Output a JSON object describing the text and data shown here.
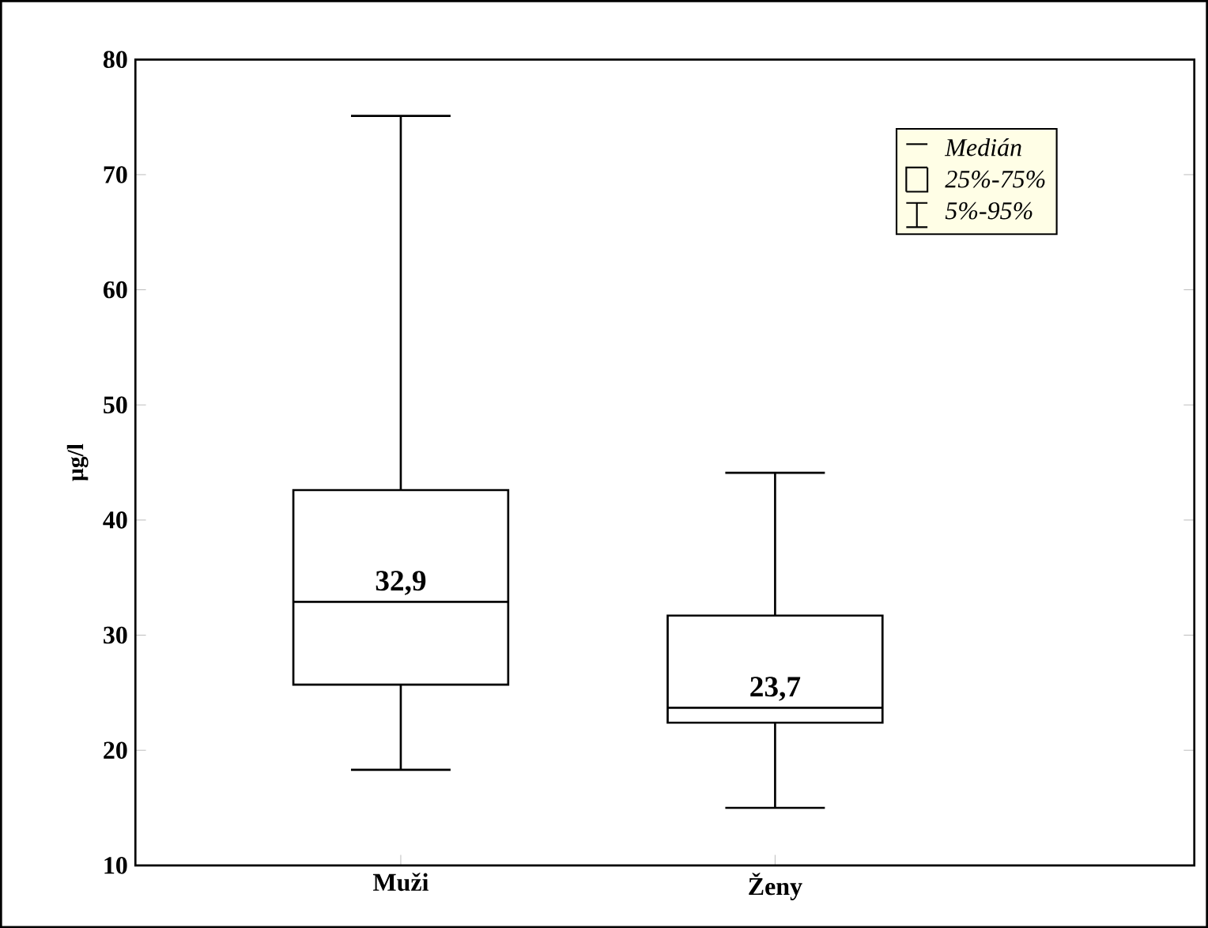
{
  "chart_data": {
    "type": "box",
    "ylabel": "µg/l",
    "categories": [
      "Muži",
      "Ženy"
    ],
    "boxes": [
      {
        "low": 18.3,
        "q1": 25.7,
        "median": 32.9,
        "q3": 42.6,
        "high": 75.1
      },
      {
        "low": 15.0,
        "q1": 22.4,
        "median": 23.7,
        "q3": 31.7,
        "high": 44.1
      }
    ],
    "value_labels": [
      "32,9",
      "23,7"
    ],
    "ylim": [
      10,
      80
    ],
    "yticks": [
      10,
      20,
      30,
      40,
      50,
      60,
      70,
      80
    ],
    "annotations": [
      "Medián",
      "25%-75%",
      "5%-95%"
    ],
    "color": "#000000"
  }
}
